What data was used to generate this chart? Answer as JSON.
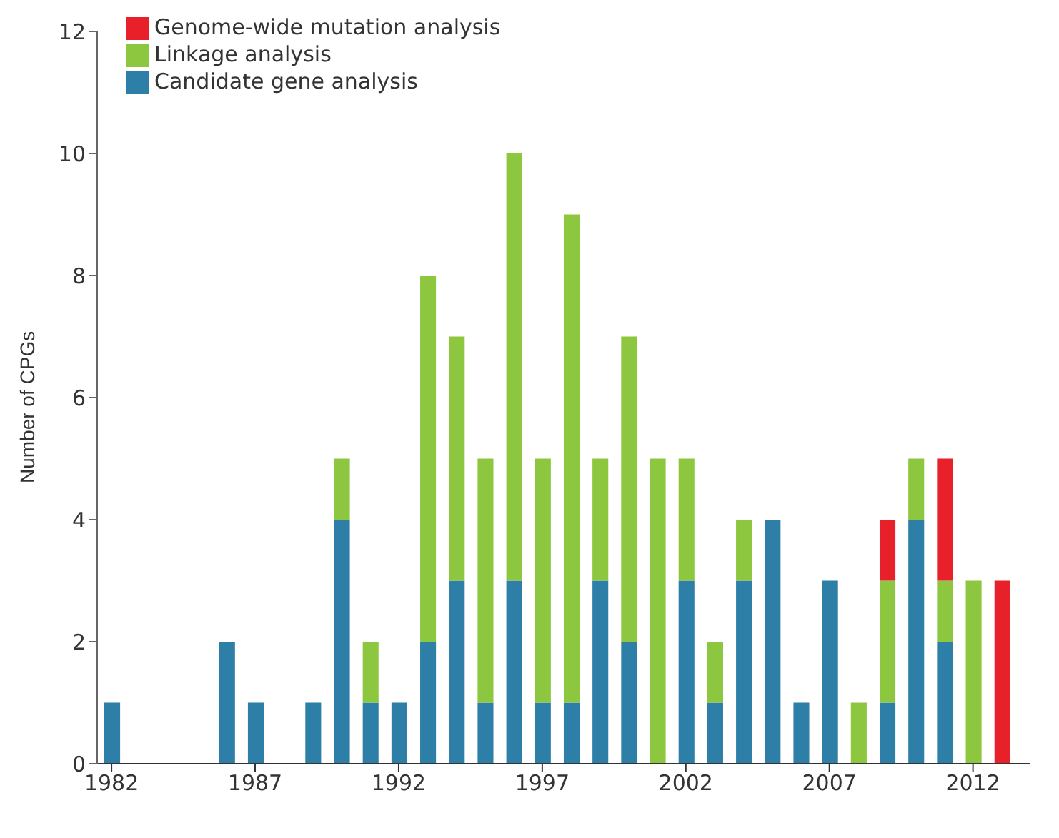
{
  "chart_data": {
    "type": "bar",
    "ylabel": "Number of CPGs",
    "stacked": true,
    "x": [
      1982,
      1983,
      1984,
      1985,
      1986,
      1987,
      1988,
      1989,
      1990,
      1991,
      1992,
      1993,
      1994,
      1995,
      1996,
      1997,
      1998,
      1999,
      2000,
      2001,
      2002,
      2003,
      2004,
      2005,
      2006,
      2007,
      2008,
      2009,
      2010,
      2011,
      2012,
      2013
    ],
    "series": [
      {
        "name": "Candidate gene analysis",
        "color": "#2e7fa8",
        "values": [
          1,
          0,
          0,
          0,
          2,
          1,
          0,
          1,
          4,
          1,
          1,
          2,
          3,
          1,
          3,
          1,
          1,
          3,
          2,
          0,
          3,
          1,
          3,
          4,
          1,
          3,
          0,
          1,
          4,
          2,
          0,
          0
        ]
      },
      {
        "name": "Linkage analysis",
        "color": "#8dc63f",
        "values": [
          0,
          0,
          0,
          0,
          0,
          0,
          0,
          0,
          1,
          1,
          0,
          6,
          4,
          4,
          7,
          4,
          8,
          2,
          5,
          5,
          2,
          1,
          1,
          0,
          0,
          0,
          1,
          2,
          1,
          1,
          3,
          0
        ]
      },
      {
        "name": "Genome-wide mutation analysis",
        "color": "#e8202a",
        "values": [
          0,
          0,
          0,
          0,
          0,
          0,
          0,
          0,
          0,
          0,
          0,
          0,
          0,
          0,
          0,
          0,
          0,
          0,
          0,
          0,
          0,
          0,
          0,
          0,
          0,
          0,
          0,
          1,
          0,
          2,
          0,
          3
        ]
      }
    ],
    "xlim": [
      1981.5,
      2014
    ],
    "xticks": [
      1982,
      1987,
      1992,
      1997,
      2002,
      2007,
      2012
    ],
    "ylim": [
      0,
      12
    ],
    "yticks": [
      0,
      2,
      4,
      6,
      8,
      10,
      12
    ],
    "grid": false,
    "legend": "top left"
  }
}
